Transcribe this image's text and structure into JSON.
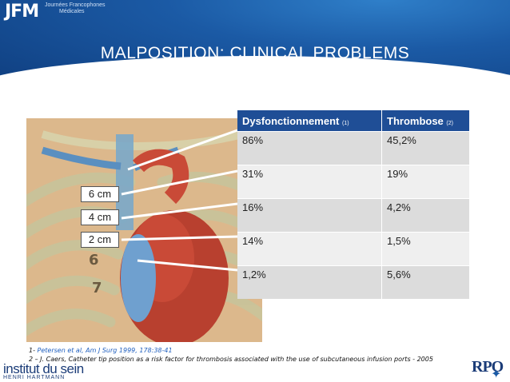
{
  "header": {
    "logo": "JFM",
    "logo_sub_1": "Journées Francophones",
    "logo_sub_2": "Médicales",
    "title": "MALPOSITION: CLINICAL PROBLEMS"
  },
  "table": {
    "headers": [
      {
        "label": "Dysfonctionnement",
        "ref": "(1)"
      },
      {
        "label": "Thrombose",
        "ref": "(2)"
      }
    ],
    "rows": [
      [
        "86%",
        "45,2%"
      ],
      [
        "31%",
        "19%"
      ],
      [
        "16%",
        "4,2%"
      ],
      [
        "14%",
        "1,5%"
      ],
      [
        "1,2%",
        "5,6%"
      ]
    ]
  },
  "markers": [
    "6 cm",
    "4 cm",
    "2 cm"
  ],
  "image_labels": [
    "6",
    "7"
  ],
  "references": {
    "ref1_prefix": "1- ",
    "ref1": "Petersen et al, Am J Surg 1999, 178:38-41",
    "ref2": "2 – J. Caers, Catheter tip position as a risk factor for thrombosis associated with the use of subcutaneous infusion ports - 2005"
  },
  "footer": {
    "left_line1": "institut du sein",
    "left_line2": "HENRI HARTMANN",
    "right_logo": "RPO"
  }
}
